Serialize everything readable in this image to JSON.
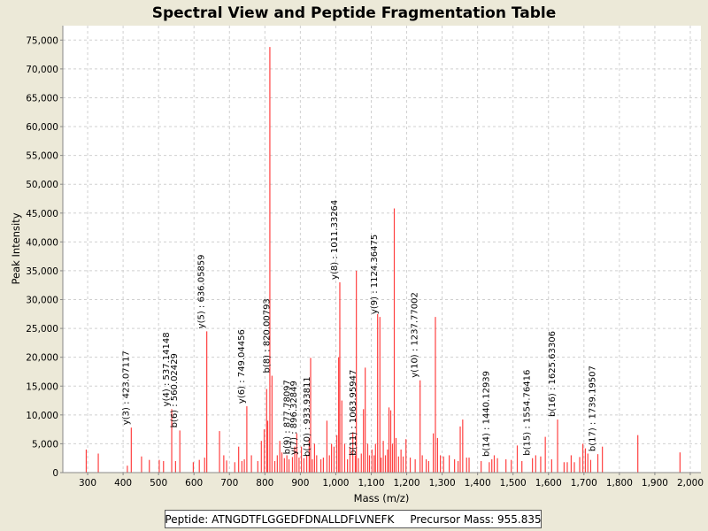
{
  "chart_data": {
    "type": "bar",
    "title": "Spectral View and Peptide Fragmentation Table",
    "xlabel": "Mass (m/z)",
    "ylabel": "Peak Intensity",
    "xlim": [
      230,
      2030
    ],
    "ylim": [
      0,
      77500
    ],
    "x_ticks": [
      300,
      400,
      500,
      600,
      700,
      800,
      900,
      1000,
      1100,
      1200,
      1300,
      1400,
      1500,
      1600,
      1700,
      1800,
      1900,
      2000
    ],
    "x_tick_labels": [
      "300",
      "400",
      "500",
      "600",
      "700",
      "800",
      "900",
      "1,000",
      "1,100",
      "1,200",
      "1,300",
      "1,400",
      "1,500",
      "1,600",
      "1,700",
      "1,800",
      "1,900",
      "2,000"
    ],
    "y_ticks": [
      0,
      5000,
      10000,
      15000,
      20000,
      25000,
      30000,
      35000,
      40000,
      45000,
      50000,
      55000,
      60000,
      65000,
      70000,
      75000
    ],
    "y_tick_labels": [
      "0",
      "5,000",
      "10,000",
      "15,000",
      "20,000",
      "25,000",
      "30,000",
      "35,000",
      "40,000",
      "45,000",
      "50,000",
      "55,000",
      "60,000",
      "65,000",
      "70,000",
      "75,000"
    ],
    "grid": true,
    "series_color": "#FF4040",
    "peaks": [
      [
        296,
        4000
      ],
      [
        330,
        3300
      ],
      [
        412,
        1200
      ],
      [
        423.07,
        7800
      ],
      [
        452,
        2800
      ],
      [
        474,
        2200
      ],
      [
        502,
        2200
      ],
      [
        514,
        2000
      ],
      [
        537.14,
        11000
      ],
      [
        548,
        2000
      ],
      [
        560.02,
        7300
      ],
      [
        598,
        1800
      ],
      [
        615,
        2200
      ],
      [
        630,
        2600
      ],
      [
        636.06,
        24500
      ],
      [
        672,
        7200
      ],
      [
        684,
        3000
      ],
      [
        692,
        2100
      ],
      [
        715,
        1800
      ],
      [
        726,
        4500
      ],
      [
        735,
        2000
      ],
      [
        742,
        2300
      ],
      [
        749.04,
        11500
      ],
      [
        762,
        3000
      ],
      [
        780,
        2000
      ],
      [
        790,
        5500
      ],
      [
        798,
        7500
      ],
      [
        805,
        14500
      ],
      [
        808,
        9000
      ],
      [
        814,
        73800
      ],
      [
        820.01,
        16800
      ],
      [
        828,
        2000
      ],
      [
        835,
        3000
      ],
      [
        842,
        5500
      ],
      [
        848,
        3500
      ],
      [
        855,
        2500
      ],
      [
        862,
        3000
      ],
      [
        868,
        2300
      ],
      [
        877.78,
        2700
      ],
      [
        884,
        4500
      ],
      [
        890,
        6800
      ],
      [
        896.33,
        2600
      ],
      [
        903,
        4500
      ],
      [
        910,
        2500
      ],
      [
        918,
        3000
      ],
      [
        925,
        6000
      ],
      [
        929,
        19900
      ],
      [
        933.94,
        2300
      ],
      [
        940,
        5000
      ],
      [
        946,
        3000
      ],
      [
        958,
        2300
      ],
      [
        965,
        2600
      ],
      [
        975,
        9000
      ],
      [
        982,
        3000
      ],
      [
        988,
        5000
      ],
      [
        995,
        4500
      ],
      [
        1003,
        6500
      ],
      [
        1008,
        20000
      ],
      [
        1011.33,
        33000
      ],
      [
        1017,
        12500
      ],
      [
        1025,
        5000
      ],
      [
        1033,
        2300
      ],
      [
        1040,
        4500
      ],
      [
        1048,
        7000
      ],
      [
        1055,
        3000
      ],
      [
        1058,
        35000
      ],
      [
        1063.96,
        2500
      ],
      [
        1072,
        3300
      ],
      [
        1078,
        11000
      ],
      [
        1083,
        18200
      ],
      [
        1090,
        5000
      ],
      [
        1095,
        3000
      ],
      [
        1102,
        4000
      ],
      [
        1108,
        3000
      ],
      [
        1112,
        5000
      ],
      [
        1118,
        27500
      ],
      [
        1124.36,
        27000
      ],
      [
        1128,
        2600
      ],
      [
        1134,
        5500
      ],
      [
        1140,
        3000
      ],
      [
        1146,
        4000
      ],
      [
        1150,
        11300
      ],
      [
        1155,
        10800
      ],
      [
        1160,
        5000
      ],
      [
        1165,
        45800
      ],
      [
        1170,
        6000
      ],
      [
        1177,
        2800
      ],
      [
        1184,
        4000
      ],
      [
        1190,
        2800
      ],
      [
        1198,
        5800
      ],
      [
        1210,
        2600
      ],
      [
        1224,
        2300
      ],
      [
        1237.77,
        16000
      ],
      [
        1244,
        3000
      ],
      [
        1255,
        2300
      ],
      [
        1262,
        2000
      ],
      [
        1275,
        6800
      ],
      [
        1281,
        27000
      ],
      [
        1287,
        6000
      ],
      [
        1295,
        3000
      ],
      [
        1304,
        2800
      ],
      [
        1320,
        3000
      ],
      [
        1335,
        2300
      ],
      [
        1345,
        2000
      ],
      [
        1351,
        8000
      ],
      [
        1358,
        9200
      ],
      [
        1369,
        2600
      ],
      [
        1376,
        2600
      ],
      [
        1410,
        2000
      ],
      [
        1433,
        1800
      ],
      [
        1440.13,
        2300
      ],
      [
        1447,
        3000
      ],
      [
        1456,
        2500
      ],
      [
        1480,
        2300
      ],
      [
        1495,
        2200
      ],
      [
        1512,
        4700
      ],
      [
        1525,
        2000
      ],
      [
        1554.76,
        2500
      ],
      [
        1564,
        3000
      ],
      [
        1578,
        2800
      ],
      [
        1591,
        6200
      ],
      [
        1609,
        2300
      ],
      [
        1625.63,
        9200
      ],
      [
        1644,
        1800
      ],
      [
        1653,
        1800
      ],
      [
        1664,
        3000
      ],
      [
        1673,
        1800
      ],
      [
        1688,
        2700
      ],
      [
        1697,
        5000
      ],
      [
        1704,
        4200
      ],
      [
        1711,
        3300
      ],
      [
        1719,
        2200
      ],
      [
        1739.2,
        3200
      ],
      [
        1752,
        4500
      ],
      [
        1852,
        6500
      ],
      [
        1971,
        3500
      ]
    ],
    "annotations": [
      {
        "mz": 423.07117,
        "label": "y(3) : 423.07117"
      },
      {
        "mz": 537.14148,
        "label": "y(4) : 537.14148"
      },
      {
        "mz": 560.02429,
        "label": "b(6) : 560.02429"
      },
      {
        "mz": 636.05859,
        "label": "y(5) : 636.05859"
      },
      {
        "mz": 749.04456,
        "label": "y(6) : 749.04456"
      },
      {
        "mz": 820.00793,
        "label": "b(8) : 820.00793"
      },
      {
        "mz": 877.78097,
        "label": "b(9) : 877.78097"
      },
      {
        "mz": 896.32849,
        "label": "y(7) : 896.32849"
      },
      {
        "mz": 933.93811,
        "label": "b(10) : 933.93811"
      },
      {
        "mz": 1011.33264,
        "label": "y(8) : 1011.33264"
      },
      {
        "mz": 1063.95947,
        "label": "b(11) : 1063.95947"
      },
      {
        "mz": 1124.36475,
        "label": "y(9) : 1124.36475"
      },
      {
        "mz": 1237.77002,
        "label": "y(10) : 1237.77002"
      },
      {
        "mz": 1440.12939,
        "label": "b(14) : 1440.12939"
      },
      {
        "mz": 1554.76416,
        "label": "b(15) : 1554.76416"
      },
      {
        "mz": 1625.63306,
        "label": "b(16) : 1625.63306"
      },
      {
        "mz": 1739.19507,
        "label": "b(17) : 1739.19507"
      }
    ]
  },
  "footer": {
    "peptide_label": "Peptide: ATNGDTFLGGEDFDNALLDFLVNEFK",
    "precursor_label": "Precursor Mass: 955.835"
  }
}
